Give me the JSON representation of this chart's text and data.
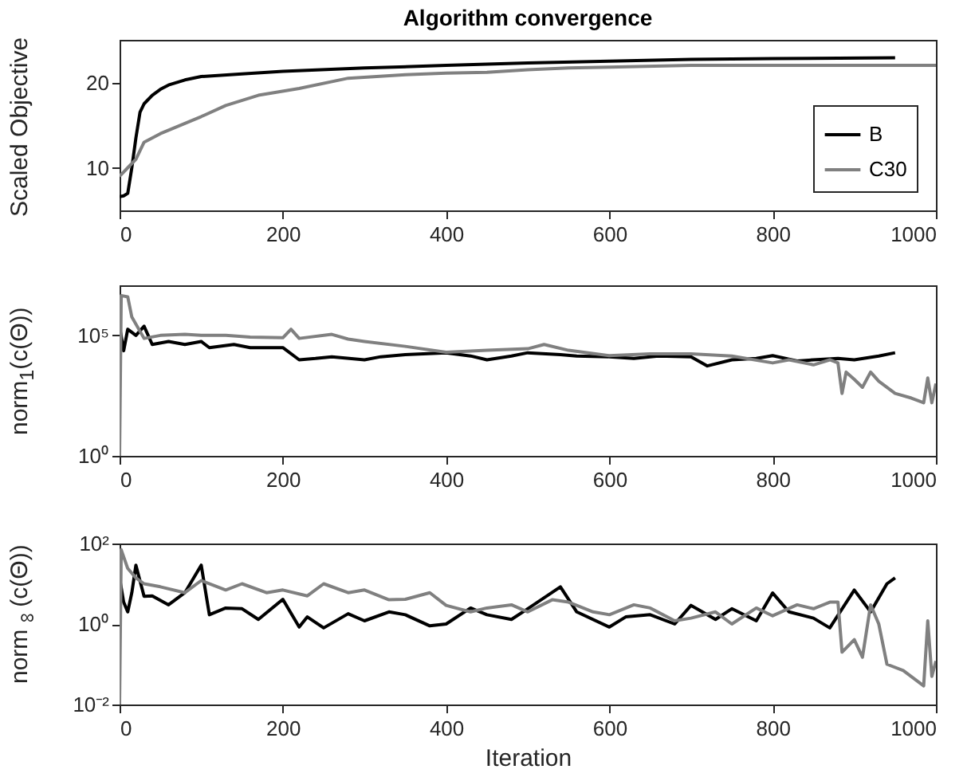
{
  "chart_data": [
    {
      "type": "line",
      "title": "Algorithm convergence",
      "ylabel": "Scaled Objective",
      "xlim": [
        0,
        1000
      ],
      "xticks": [
        0,
        200,
        400,
        600,
        800,
        1000
      ],
      "ylim": [
        5,
        25
      ],
      "yticks": [
        10,
        20
      ],
      "legend": "bottom right",
      "grid": false,
      "series": [
        {
          "name": "B",
          "color": "#000000",
          "x": [
            0,
            5,
            10,
            15,
            20,
            25,
            30,
            40,
            50,
            60,
            80,
            100,
            150,
            200,
            300,
            400,
            500,
            600,
            700,
            800,
            950
          ],
          "values": [
            6.6,
            6.7,
            7,
            10,
            13.5,
            16.5,
            17.5,
            18.5,
            19.2,
            19.7,
            20.3,
            20.7,
            21,
            21.3,
            21.7,
            22,
            22.3,
            22.5,
            22.7,
            22.8,
            22.9
          ]
        },
        {
          "name": "C30",
          "color": "#808080",
          "x": [
            0,
            5,
            10,
            20,
            30,
            50,
            80,
            100,
            130,
            170,
            220,
            280,
            350,
            400,
            450,
            500,
            550,
            600,
            700,
            1000
          ],
          "values": [
            9,
            9.5,
            10,
            11,
            13,
            14,
            15.2,
            16,
            17.3,
            18.5,
            19.3,
            20.5,
            20.9,
            21.1,
            21.2,
            21.5,
            21.7,
            21.8,
            22,
            22
          ]
        }
      ]
    },
    {
      "type": "line",
      "ylabel": "norm$_{1}$(c(Θ))",
      "xlim": [
        0,
        1000
      ],
      "xticks": [
        0,
        200,
        400,
        600,
        800,
        1000
      ],
      "log": true,
      "ylim": [
        1,
        12000000
      ],
      "yticks": [
        {
          "value": 1,
          "label": "10⁰"
        },
        {
          "value": 100000,
          "label": "10⁵"
        }
      ],
      "grid": false,
      "series": [
        {
          "color": "#000000",
          "x": [
            0,
            5,
            10,
            20,
            30,
            40,
            60,
            80,
            100,
            110,
            140,
            160,
            200,
            220,
            240,
            260,
            300,
            320,
            350,
            400,
            430,
            450,
            480,
            500,
            540,
            560,
            600,
            630,
            660,
            700,
            720,
            750,
            780,
            800,
            830,
            850,
            880,
            900,
            930,
            950
          ],
          "values": [
            240000,
            23000,
            180000,
            100000,
            240000,
            42000,
            56000,
            42000,
            56000,
            31000,
            42000,
            31000,
            31000,
            9700,
            11000,
            13000,
            9700,
            13000,
            16000,
            19000,
            14000,
            9700,
            14000,
            19000,
            16000,
            14000,
            13000,
            11000,
            14000,
            13000,
            5400,
            9700,
            11000,
            14500,
            8700,
            9700,
            11000,
            9700,
            14000,
            19000
          ]
        },
        {
          "color": "#808080",
          "x": [
            0,
            2,
            10,
            15,
            30,
            50,
            80,
            100,
            130,
            160,
            200,
            210,
            220,
            260,
            280,
            300,
            350,
            400,
            450,
            500,
            520,
            550,
            600,
            650,
            700,
            750,
            800,
            820,
            850,
            870,
            880,
            885,
            890,
            900,
            910,
            920,
            930,
            950,
            970,
            985,
            990,
            995,
            1000
          ],
          "values": [
            1,
            4500000,
            4000000,
            580000,
            75000,
            100000,
            110000,
            100000,
            100000,
            85000,
            80000,
            180000,
            75000,
            110000,
            70000,
            56000,
            35000,
            20000,
            24000,
            28000,
            42000,
            24000,
            14500,
            17000,
            17000,
            14000,
            7200,
            9700,
            6000,
            9700,
            7200,
            390,
            3000,
            1500,
            700,
            3000,
            1250,
            390,
            250,
            160,
            1700,
            160,
            1000
          ]
        }
      ]
    },
    {
      "type": "line",
      "ylabel": "norm$_{∞}$(c(Θ))",
      "xlabel": "Iteration",
      "xlim": [
        0,
        1000
      ],
      "xticks": [
        0,
        200,
        400,
        600,
        800,
        1000
      ],
      "log": true,
      "ylim": [
        0.01,
        100
      ],
      "yticks": [
        {
          "value": 0.01,
          "label": "10⁻²"
        },
        {
          "value": 1,
          "label": "10⁰"
        },
        {
          "value": 100,
          "label": "10²"
        }
      ],
      "grid": false,
      "series": [
        {
          "color": "#000000",
          "x": [
            0,
            5,
            10,
            15,
            20,
            30,
            40,
            60,
            80,
            100,
            110,
            130,
            150,
            170,
            200,
            220,
            230,
            250,
            280,
            300,
            330,
            350,
            380,
            400,
            430,
            450,
            480,
            500,
            540,
            560,
            600,
            620,
            650,
            680,
            700,
            730,
            750,
            780,
            800,
            820,
            850,
            870,
            900,
            920,
            940,
            950
          ],
          "values": [
            14,
            3.5,
            2,
            6,
            29,
            4.9,
            5,
            3,
            6,
            29,
            1.7,
            2.5,
            2.4,
            1.3,
            4.1,
            0.84,
            1.5,
            0.8,
            1.8,
            1.2,
            2,
            1.7,
            0.9,
            1,
            2.5,
            1.7,
            1.3,
            2.4,
            8.4,
            2,
            0.84,
            1.5,
            1.7,
            1,
            2.9,
            1.3,
            2.4,
            1.2,
            5.9,
            2,
            1.4,
            0.8,
            7,
            2,
            10,
            14
          ]
        },
        {
          "color": "#808080",
          "x": [
            0,
            2,
            10,
            20,
            30,
            50,
            80,
            100,
            130,
            150,
            180,
            200,
            230,
            250,
            280,
            300,
            330,
            350,
            380,
            400,
            430,
            450,
            480,
            500,
            530,
            550,
            580,
            600,
            630,
            650,
            680,
            700,
            730,
            750,
            780,
            800,
            830,
            850,
            870,
            880,
            885,
            900,
            910,
            920,
            930,
            940,
            960,
            985,
            990,
            995,
            1000
          ],
          "values": [
            0.01,
            70,
            24,
            14,
            10,
            8.4,
            6,
            12,
            7,
            10,
            6,
            7,
            5,
            10,
            6,
            7,
            4,
            4.1,
            6,
            2.9,
            2,
            2.5,
            3,
            2,
            4,
            3.5,
            2,
            1.7,
            3,
            2.5,
            1.2,
            1.4,
            2,
            1,
            2.5,
            1.6,
            3,
            2.4,
            3.5,
            3.5,
            0.2,
            0.41,
            0.15,
            3,
            1,
            0.1,
            0.07,
            0.029,
            1.2,
            0.05,
            0.12
          ]
        }
      ]
    }
  ]
}
